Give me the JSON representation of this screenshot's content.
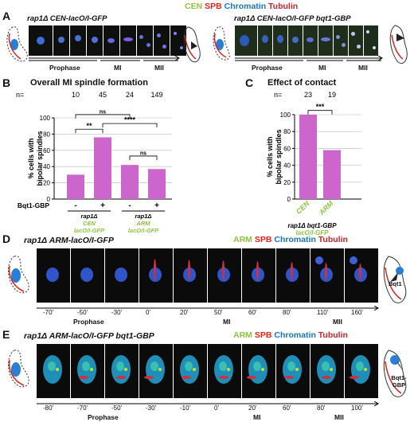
{
  "panels": {
    "A": {
      "letter": "A",
      "left_genotype": "rap1Δ CEN-lacO/I-GFP",
      "right_genotype": "rap1Δ CEN-lacO/I-GFP bqt1-GBP",
      "phases": [
        "Prophase",
        "MI",
        "MII"
      ]
    },
    "legend_top": {
      "cen": "CEN",
      "spb": "SPB",
      "chromatin": "Chromatin",
      "tubulin": "Tubulin"
    },
    "B": {
      "letter": "B"
    },
    "C": {
      "letter": "C"
    },
    "D": {
      "letter": "D",
      "genotype": "rap1Δ ARM-lacO/I-GFP",
      "times": [
        "-70'",
        "-50'",
        "-30'",
        "0'",
        "20'",
        "50'",
        "60'",
        "80'",
        "110'",
        "160'"
      ],
      "phases": [
        "Prophase",
        "MI",
        "MII"
      ],
      "schematic_label": "Bqt1"
    },
    "E": {
      "letter": "E",
      "genotype": "rap1Δ ARM-lacO/I-GFP bqt1-GBP",
      "times": [
        "-80'",
        "-70'",
        "-50'",
        "-30'",
        "-10'",
        "0'",
        "20'",
        "60'",
        "80'",
        "100'"
      ],
      "phases": [
        "Prophase",
        "MI",
        "MII"
      ],
      "schematic_label": "Bqt1-GBP"
    },
    "legend_arm": {
      "arm": "ARM",
      "spb": "SPB",
      "chromatin": "Chromatin",
      "tubulin": "Tubulin"
    }
  },
  "chart_data": [
    {
      "type": "bar",
      "title": "Overall MI spindle formation",
      "n_label": "n=",
      "n": [
        "10",
        "45",
        "24",
        "149"
      ],
      "ylabel": "% cells with bipolar spindles",
      "ylim": [
        0,
        100
      ],
      "yticks": [
        "0",
        "20",
        "40",
        "60",
        "80",
        "100"
      ],
      "bqt_label": "Bqt1-GBP",
      "bqt_signs": [
        "-",
        "+",
        "-",
        "+"
      ],
      "values": [
        30,
        76,
        42,
        37
      ],
      "group_labels": [
        {
          "strain": "rap1Δ",
          "marker": "CEN",
          "suffix": "lacO/I-GFP"
        },
        {
          "strain": "rap1Δ",
          "marker": "ARM",
          "suffix": "lacO/I-GFP"
        }
      ],
      "significance": [
        {
          "between": [
            0,
            1
          ],
          "label": "**"
        },
        {
          "between": [
            0,
            2
          ],
          "label": "ns"
        },
        {
          "between": [
            1,
            3
          ],
          "label": "****"
        },
        {
          "between": [
            2,
            3
          ],
          "label": "ns"
        }
      ],
      "color": "#cc66cc"
    },
    {
      "type": "bar",
      "title": "Effect of contact",
      "n_label": "n=",
      "n": [
        "23",
        "19"
      ],
      "ylabel": "% cells with bipolar spindles",
      "ylim": [
        0,
        100
      ],
      "yticks": [
        "0",
        "20",
        "40",
        "60",
        "80",
        "100"
      ],
      "categories": [
        "CEN",
        "ARM"
      ],
      "values": [
        100,
        58
      ],
      "footer": [
        "rap1Δ bqt1-GBP",
        "lacO/I-GFP"
      ],
      "significance": [
        {
          "between": [
            0,
            1
          ],
          "label": "***"
        }
      ],
      "color": "#cc66cc"
    }
  ]
}
